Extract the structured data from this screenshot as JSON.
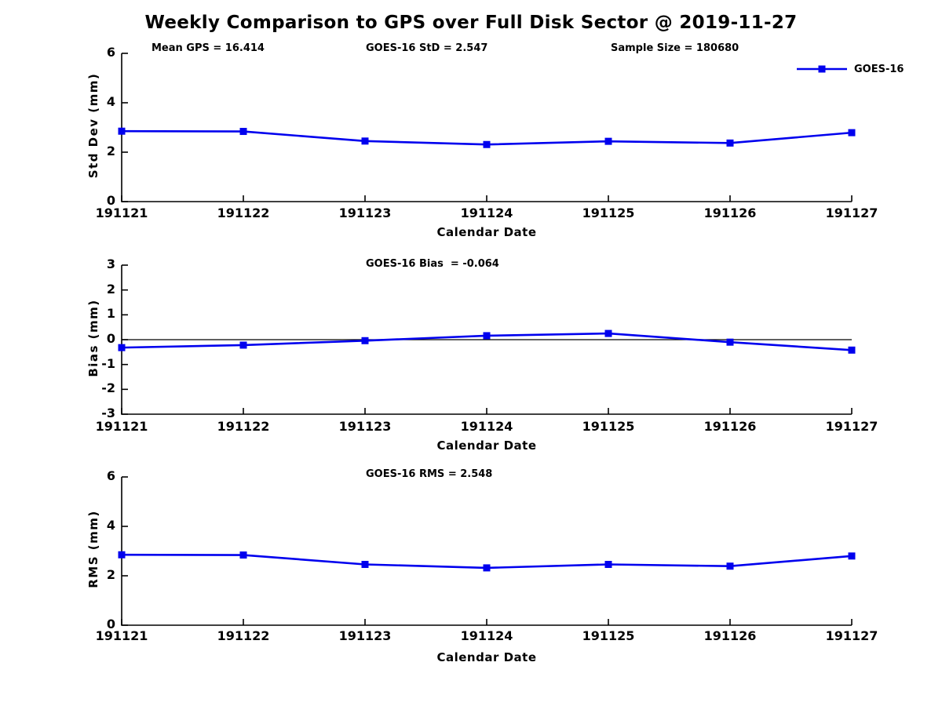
{
  "title": "Weekly Comparison to GPS over Full Disk Sector @ 2019-11-27",
  "legend": {
    "label": "GOES-16"
  },
  "colors": {
    "line": "#0000EE",
    "axis": "#000000"
  },
  "chart_data": [
    {
      "type": "line",
      "title": "",
      "annotations": [
        "Mean GPS = 16.414",
        "GOES-16 StD = 2.547",
        "Sample Size = 180680"
      ],
      "categories": [
        "191121",
        "191122",
        "191123",
        "191124",
        "191125",
        "191126",
        "191127"
      ],
      "series": [
        {
          "name": "GOES-16",
          "values": [
            2.85,
            2.84,
            2.45,
            2.31,
            2.44,
            2.37,
            2.79
          ]
        }
      ],
      "xlabel": "Calendar Date",
      "ylabel": "Std Dev (mm)",
      "ylim": [
        0,
        6
      ],
      "yticks": [
        0,
        2,
        4,
        6
      ],
      "grid": false,
      "zero_line": false,
      "legend_position": "top-right",
      "marker": "square"
    },
    {
      "type": "line",
      "title": "",
      "annotations": [
        "GOES-16 Bias  = -0.064"
      ],
      "categories": [
        "191121",
        "191122",
        "191123",
        "191124",
        "191125",
        "191126",
        "191127"
      ],
      "series": [
        {
          "name": "GOES-16",
          "values": [
            -0.32,
            -0.22,
            -0.04,
            0.16,
            0.25,
            -0.1,
            -0.42
          ]
        }
      ],
      "xlabel": "Calendar Date",
      "ylabel": "Bias (mm)",
      "ylim": [
        -3,
        3
      ],
      "yticks": [
        -3,
        -2,
        -1,
        0,
        1,
        2,
        3
      ],
      "grid": false,
      "zero_line": true,
      "legend_position": "none",
      "marker": "square"
    },
    {
      "type": "line",
      "title": "",
      "annotations": [
        "GOES-16 RMS = 2.548"
      ],
      "categories": [
        "191121",
        "191122",
        "191123",
        "191124",
        "191125",
        "191126",
        "191127"
      ],
      "series": [
        {
          "name": "GOES-16",
          "values": [
            2.85,
            2.84,
            2.46,
            2.32,
            2.46,
            2.39,
            2.8
          ]
        }
      ],
      "xlabel": "Calendar Date",
      "ylabel": "RMS (mm)",
      "ylim": [
        0,
        6
      ],
      "yticks": [
        0,
        2,
        4,
        6
      ],
      "grid": false,
      "zero_line": false,
      "legend_position": "none",
      "marker": "square"
    }
  ]
}
